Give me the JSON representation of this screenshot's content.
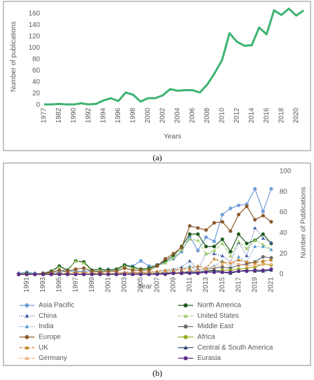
{
  "captions": [
    "(a)",
    "(b)"
  ],
  "chart_data": [
    {
      "type": "line",
      "x_label": "Years",
      "y_label": "Number of publications",
      "categories": [
        "1977",
        null,
        "1982",
        null,
        "1990",
        null,
        "1992",
        null,
        "1994",
        null,
        "1996",
        null,
        "1998",
        null,
        "2000",
        null,
        "2002",
        null,
        "2004",
        null,
        "2006",
        null,
        "2008",
        null,
        "2010",
        null,
        "2012",
        null,
        "2014",
        null,
        "2016",
        null,
        "2018",
        null,
        "2020",
        null
      ],
      "series": [
        {
          "name": "Number of publications",
          "color": "#3cb371",
          "values": [
            1,
            1,
            2,
            1,
            1,
            3,
            1,
            2,
            8,
            12,
            7,
            22,
            18,
            6,
            12,
            12,
            17,
            28,
            25,
            26,
            26,
            22,
            36,
            56,
            79,
            126,
            111,
            104,
            105,
            136,
            124,
            166,
            158,
            169,
            157,
            166
          ]
        }
      ],
      "ylim": [
        0,
        170
      ],
      "yticks": [
        0,
        20,
        40,
        60,
        80,
        100,
        120,
        140,
        160
      ],
      "legend": false
    },
    {
      "type": "line",
      "x_label": "Year",
      "y_label": "Number of Publications",
      "y_axis_side": "right",
      "categories": [
        null,
        "1991",
        null,
        "1993",
        null,
        "1995",
        null,
        "1997",
        null,
        "1999",
        null,
        "2001",
        null,
        "2003",
        null,
        "2005",
        null,
        "2007",
        null,
        "2009",
        null,
        "2011",
        null,
        "2013",
        null,
        "2015",
        null,
        "2017",
        null,
        "2019",
        null,
        "2021"
      ],
      "ylim": [
        0,
        100
      ],
      "yticks": [
        0,
        20,
        40,
        60,
        80,
        100
      ],
      "legend": true,
      "series": [
        {
          "name": "Asia Pacific",
          "color": "#6f9ed8",
          "marker": "circle",
          "dash": "solid",
          "values": [
            1,
            2,
            1,
            0,
            2,
            2,
            3,
            3,
            3,
            3,
            3,
            5,
            4,
            9,
            8,
            13,
            8,
            8,
            12,
            15,
            22,
            37,
            23,
            36,
            32,
            58,
            64,
            67,
            68,
            83,
            61,
            83
          ]
        },
        {
          "name": "North America",
          "color": "#1e5a1e",
          "marker": "circle",
          "dash": "solid",
          "values": [
            0,
            1,
            0,
            1,
            3,
            8,
            4,
            13,
            12,
            4,
            5,
            4,
            5,
            9,
            7,
            5,
            6,
            9,
            13,
            18,
            27,
            39,
            39,
            27,
            27,
            34,
            22,
            39,
            30,
            33,
            39,
            30
          ]
        },
        {
          "name": "China",
          "color": "#3f5fa8",
          "marker": "triangle",
          "dash": "dotted",
          "values": [
            0,
            0,
            0,
            0,
            0,
            1,
            0,
            1,
            1,
            0,
            1,
            1,
            1,
            2,
            1,
            2,
            2,
            3,
            4,
            5,
            7,
            13,
            5,
            20,
            20,
            18,
            12,
            31,
            18,
            45,
            35,
            31
          ]
        },
        {
          "name": "United States",
          "color": "#9ccc65",
          "marker": "triangle",
          "dash": "dashed",
          "values": [
            0,
            1,
            0,
            1,
            2,
            7,
            3,
            13,
            11,
            3,
            4,
            3,
            4,
            8,
            6,
            4,
            5,
            8,
            11,
            16,
            24,
            34,
            33,
            20,
            23,
            30,
            18,
            32,
            25,
            33,
            29,
            24
          ]
        },
        {
          "name": "India",
          "color": "#5b9bd5",
          "marker": "triangle",
          "dash": "dotted",
          "values": [
            0,
            0,
            0,
            0,
            0,
            0,
            0,
            0,
            0,
            0,
            0,
            1,
            1,
            1,
            1,
            1,
            1,
            2,
            2,
            3,
            5,
            8,
            4,
            6,
            8,
            13,
            7,
            17,
            12,
            27,
            27,
            24
          ]
        },
        {
          "name": "Middle East",
          "color": "#6b6b6b",
          "marker": "circle",
          "dash": "solid",
          "values": [
            0,
            0,
            0,
            0,
            0,
            0,
            0,
            0,
            0,
            0,
            0,
            0,
            1,
            1,
            1,
            1,
            1,
            1,
            2,
            2,
            2,
            3,
            4,
            5,
            6,
            7,
            6,
            9,
            10,
            12,
            17,
            16
          ]
        },
        {
          "name": "Europe",
          "color": "#8b5a2b",
          "marker": "circle",
          "dash": "solid",
          "values": [
            0,
            0,
            0,
            1,
            2,
            4,
            3,
            5,
            6,
            3,
            2,
            3,
            3,
            6,
            4,
            4,
            4,
            8,
            15,
            20,
            26,
            47,
            45,
            43,
            50,
            51,
            42,
            58,
            66,
            53,
            57,
            51
          ]
        },
        {
          "name": "Africa",
          "color": "#9aa81e",
          "marker": "circle",
          "dash": "solid",
          "values": [
            0,
            0,
            0,
            0,
            0,
            0,
            0,
            0,
            0,
            0,
            0,
            0,
            0,
            0,
            0,
            0,
            1,
            1,
            1,
            1,
            1,
            2,
            2,
            3,
            3,
            4,
            4,
            5,
            6,
            7,
            10,
            9
          ]
        },
        {
          "name": "UK",
          "color": "#c07a1a",
          "marker": "triangle",
          "dash": "dashed",
          "values": [
            0,
            0,
            0,
            0,
            1,
            1,
            1,
            2,
            2,
            1,
            1,
            1,
            1,
            2,
            2,
            2,
            2,
            3,
            4,
            4,
            5,
            6,
            8,
            6,
            15,
            12,
            11,
            14,
            12,
            11,
            13,
            14
          ]
        },
        {
          "name": "Central & South America",
          "color": "#1f3864",
          "marker": "triangle",
          "dash": "solid",
          "values": [
            0,
            0,
            0,
            0,
            0,
            0,
            0,
            0,
            0,
            0,
            0,
            0,
            0,
            0,
            0,
            0,
            0,
            1,
            1,
            1,
            1,
            2,
            2,
            3,
            4,
            2,
            1,
            3,
            4,
            3,
            3,
            4
          ]
        },
        {
          "name": "Germany",
          "color": "#f4b183",
          "marker": "triangle",
          "dash": "dashed",
          "values": [
            0,
            0,
            0,
            0,
            0,
            0,
            0,
            1,
            1,
            0,
            0,
            1,
            1,
            1,
            1,
            1,
            1,
            1,
            2,
            2,
            2,
            3,
            4,
            5,
            7,
            10,
            12,
            10,
            8,
            9,
            10,
            10
          ]
        },
        {
          "name": "Eurasia",
          "color": "#5b2c8c",
          "marker": "circle",
          "dash": "solid",
          "values": [
            0,
            0,
            0,
            0,
            0,
            0,
            0,
            0,
            0,
            0,
            0,
            0,
            0,
            0,
            0,
            0,
            0,
            0,
            0,
            1,
            1,
            1,
            1,
            2,
            2,
            2,
            2,
            3,
            3,
            4,
            4,
            5
          ]
        }
      ]
    }
  ]
}
